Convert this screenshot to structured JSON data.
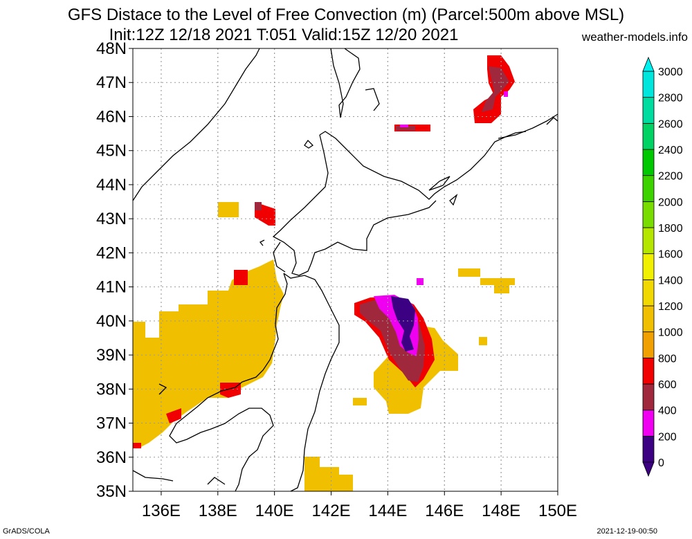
{
  "title_line1": "GFS Distace to the Level of Free Convection (m) (Parcel:500m above MSL)",
  "title_line2": "Init:12Z 12/18 2021 T:051 Valid:15Z 12/20 2021",
  "site": "weather-models.info",
  "footer_left": "GrADS/COLA",
  "footer_right": "2021-12-19-00:50",
  "map": {
    "lon_range": [
      135,
      150
    ],
    "lat_range": [
      35,
      48
    ],
    "lat_ticks": [
      "48N",
      "47N",
      "46N",
      "45N",
      "44N",
      "43N",
      "42N",
      "41N",
      "40N",
      "39N",
      "38N",
      "37N",
      "36N",
      "35N"
    ],
    "lon_ticks": [
      "136E",
      "138E",
      "140E",
      "142E",
      "144E",
      "146E",
      "148E",
      "150E"
    ]
  },
  "colorbar": {
    "levels": [
      "0",
      "200",
      "400",
      "600",
      "800",
      "1000",
      "1200",
      "1400",
      "1600",
      "1800",
      "2000",
      "2200",
      "2400",
      "2600",
      "2800",
      "3000"
    ],
    "colors": [
      "#3c0082",
      "#f000f0",
      "#a0283c",
      "#f00000",
      "#f0a000",
      "#f0c000",
      "#f0d800",
      "#f0f000",
      "#b4e600",
      "#78dc00",
      "#3cd200",
      "#00c800",
      "#00d264",
      "#00dca0",
      "#00e6dc",
      "#00f0f0"
    ]
  }
}
